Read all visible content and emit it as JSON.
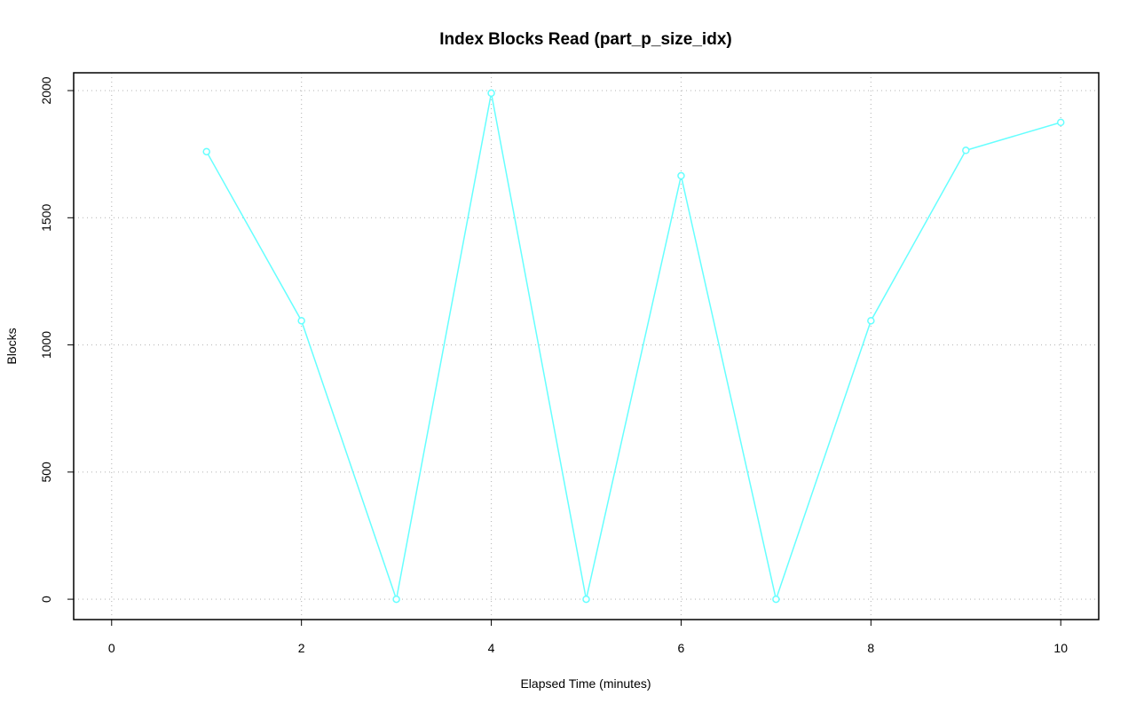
{
  "chart_data": {
    "type": "line",
    "title": "Index Blocks Read (part_p_size_idx)",
    "x_label": "Elapsed Time (minutes)",
    "y_label": "Blocks",
    "x": [
      1,
      2,
      3,
      4,
      5,
      6,
      7,
      8,
      9,
      10
    ],
    "series": [
      {
        "color": "#66ffff",
        "values": [
          1760,
          1095,
          0,
          1990,
          0,
          1665,
          0,
          1095,
          1765,
          1875
        ]
      }
    ],
    "xlim": [
      -0.4,
      10.4
    ],
    "ylim": [
      -80,
      2070
    ],
    "xticks": [
      0,
      2,
      4,
      6,
      8,
      10
    ],
    "yticks": [
      0,
      500,
      1000,
      1500,
      2000
    ],
    "grid": true
  }
}
